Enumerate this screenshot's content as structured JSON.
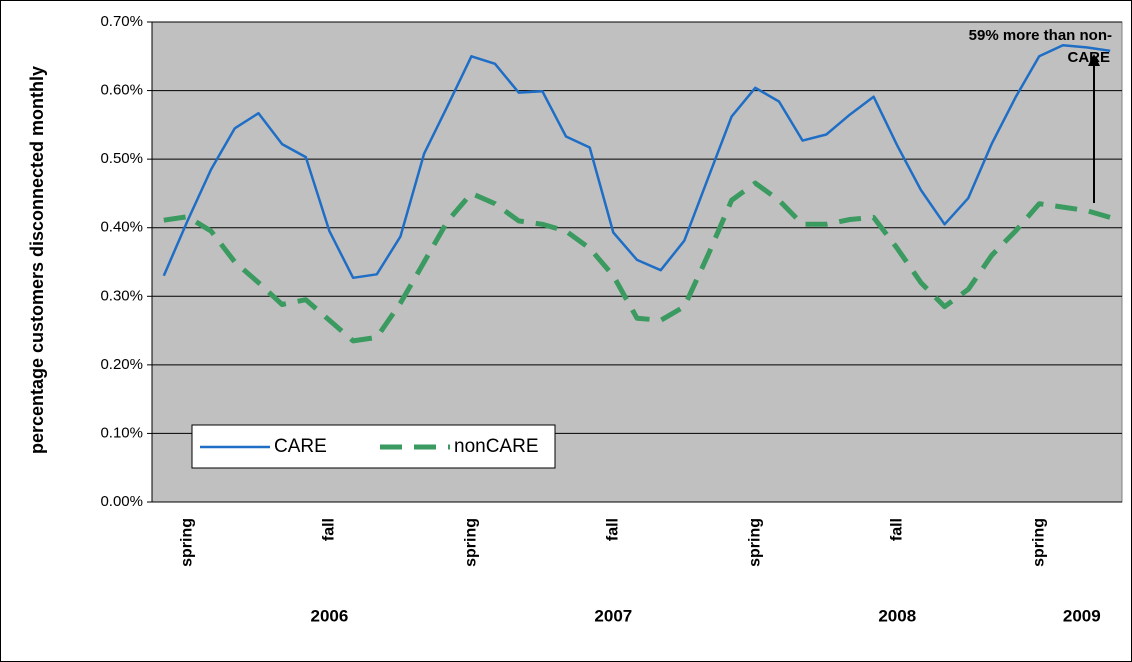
{
  "chart_data": {
    "type": "line",
    "y_label": "percentage customers disconnected monthly",
    "categories": [
      null,
      "spring",
      null,
      null,
      null,
      null,
      null,
      "fall",
      null,
      null,
      null,
      null,
      null,
      "spring",
      null,
      null,
      null,
      null,
      null,
      "fall",
      null,
      null,
      null,
      null,
      null,
      "spring",
      null,
      null,
      null,
      null,
      null,
      "fall",
      null,
      null,
      null,
      null,
      null,
      "spring",
      null,
      null,
      null
    ],
    "group_labels": [
      "2006",
      "2007",
      "2008",
      "2009"
    ],
    "series": [
      {
        "name": "CARE",
        "color": "#1f6ec6",
        "dash": false,
        "values": [
          0.33,
          0.41,
          0.485,
          0.545,
          0.567,
          0.522,
          0.503,
          0.395,
          0.327,
          0.332,
          0.387,
          0.508,
          0.578,
          0.65,
          0.639,
          0.597,
          0.599,
          0.533,
          0.517,
          0.393,
          0.353,
          0.338,
          0.381,
          0.472,
          0.562,
          0.604,
          0.584,
          0.527,
          0.536,
          0.565,
          0.591,
          0.52,
          0.455,
          0.405,
          0.443,
          0.523,
          0.59,
          0.65,
          0.666,
          0.663,
          0.658
        ]
      },
      {
        "name": "nonCARE",
        "color": "#3a9a60",
        "dash": true,
        "values": [
          0.411,
          0.416,
          0.395,
          0.35,
          0.32,
          0.288,
          0.295,
          0.265,
          0.235,
          0.24,
          0.29,
          0.35,
          0.41,
          0.45,
          0.435,
          0.41,
          0.405,
          0.395,
          0.37,
          0.33,
          0.268,
          0.265,
          0.285,
          0.36,
          0.44,
          0.465,
          0.44,
          0.405,
          0.405,
          0.412,
          0.415,
          0.37,
          0.32,
          0.285,
          0.31,
          0.36,
          0.395,
          0.435,
          0.43,
          0.425,
          0.415
        ]
      }
    ],
    "annotation": [
      "59% more than non-",
      "CARE"
    ],
    "ylim": [
      0,
      0.7
    ],
    "yticks": [
      {
        "value": 0,
        "label": "0.00%"
      },
      {
        "value": 0.1,
        "label": "0.10%"
      },
      {
        "value": 0.2,
        "label": "0.20%"
      },
      {
        "value": 0.3,
        "label": "0.30%"
      },
      {
        "value": 0.4,
        "label": "0.40%"
      },
      {
        "value": 0.5,
        "label": "0.50%"
      },
      {
        "value": 0.6,
        "label": "0.60%"
      },
      {
        "value": 0.7,
        "label": "0.70%"
      }
    ],
    "grid": true,
    "plot_background": "#c0c0c0"
  }
}
